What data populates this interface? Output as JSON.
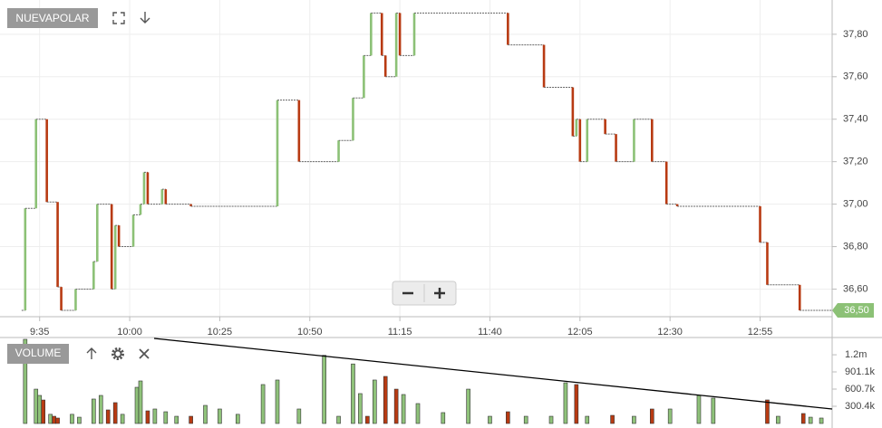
{
  "chart_data": [
    {
      "type": "step",
      "title": "NUEVAPOLAR",
      "x": [
        "9:30",
        "9:31",
        "9:34",
        "9:37",
        "9:40",
        "9:41",
        "9:45",
        "9:50",
        "9:51",
        "9:55",
        "9:56",
        "9:57",
        "10:01",
        "10:03",
        "10:04",
        "10:05",
        "10:09",
        "10:10",
        "10:17",
        "10:41",
        "10:47",
        "10:58",
        "11:02",
        "11:05",
        "11:07",
        "11:10",
        "11:11",
        "11:14",
        "11:15",
        "11:19",
        "11:45",
        "11:55",
        "12:03",
        "12:04",
        "12:05",
        "12:07",
        "12:12",
        "12:15",
        "12:20",
        "12:25",
        "12:29",
        "12:32",
        "12:55",
        "12:57",
        "13:06"
      ],
      "values": [
        36.5,
        36.98,
        37.4,
        37.01,
        36.61,
        36.5,
        36.6,
        36.73,
        37.0,
        36.6,
        36.9,
        36.8,
        36.95,
        37.0,
        37.15,
        37.0,
        37.07,
        37.0,
        36.99,
        37.49,
        37.2,
        37.3,
        37.5,
        37.7,
        37.9,
        37.7,
        37.6,
        37.9,
        37.7,
        37.9,
        37.75,
        37.55,
        37.32,
        37.4,
        37.2,
        37.4,
        37.33,
        37.2,
        37.4,
        37.2,
        37.0,
        36.99,
        36.82,
        36.62,
        36.5
      ],
      "up_color": "#8cc176",
      "down_color": "#b83a12",
      "xlim": [
        "9:24",
        "13:15"
      ],
      "xticks": [
        "9:35",
        "10:00",
        "10:25",
        "10:50",
        "11:15",
        "11:40",
        "12:05",
        "12:30",
        "12:55"
      ],
      "ylim": [
        36.47,
        37.94
      ],
      "yticks": [
        {
          "value": 36.6,
          "label": "36,60"
        },
        {
          "value": 36.8,
          "label": "36,80"
        },
        {
          "value": 37.0,
          "label": "37,00"
        },
        {
          "value": 37.2,
          "label": "37,20"
        },
        {
          "value": 37.4,
          "label": "37,40"
        },
        {
          "value": 37.6,
          "label": "37,60"
        },
        {
          "value": 37.8,
          "label": "37,80"
        }
      ],
      "last_price": {
        "value": 36.5,
        "label": "36,50"
      },
      "grid": true
    },
    {
      "type": "bar",
      "title": "VOLUME",
      "x": [
        "9:31",
        "9:34",
        "9:35",
        "9:36",
        "9:38",
        "9:39",
        "9:40",
        "9:44",
        "9:46",
        "9:50",
        "9:52",
        "9:54",
        "9:56",
        "9:58",
        "10:02",
        "10:03",
        "10:05",
        "10:07",
        "10:10",
        "10:13",
        "10:17",
        "10:21",
        "10:25",
        "10:30",
        "10:37",
        "10:41",
        "10:47",
        "10:54",
        "10:58",
        "11:02",
        "11:04",
        "11:06",
        "11:08",
        "11:11",
        "11:14",
        "11:16",
        "11:20",
        "11:27",
        "11:34",
        "11:40",
        "11:45",
        "11:50",
        "11:57",
        "12:01",
        "12:04",
        "12:07",
        "12:14",
        "12:20",
        "12:25",
        "12:30",
        "12:38",
        "12:42",
        "12:57",
        "13:00",
        "13:07",
        "13:09",
        "13:12"
      ],
      "values": [
        1470000,
        600000,
        490000,
        410000,
        160000,
        126000,
        95000,
        160000,
        110000,
        427000,
        490000,
        237000,
        364000,
        160000,
        632000,
        743000,
        221000,
        253000,
        205000,
        126000,
        126000,
        316000,
        253000,
        160000,
        680000,
        759000,
        253000,
        1190000,
        126000,
        1040000,
        522000,
        126000,
        759000,
        822000,
        600000,
        506000,
        348000,
        190000,
        600000,
        126000,
        205000,
        126000,
        126000,
        711000,
        680000,
        126000,
        142000,
        126000,
        253000,
        253000,
        490000,
        443000,
        411000,
        126000,
        174000,
        110000,
        95000
      ],
      "colors": [
        "#8fc27a",
        "#8fc27a",
        "#8fc27a",
        "#b83a12",
        "#8fc27a",
        "#b83a12",
        "#b83a12",
        "#8fc27a",
        "#8fc27a",
        "#8fc27a",
        "#8fc27a",
        "#b83a12",
        "#b83a12",
        "#8fc27a",
        "#8fc27a",
        "#8fc27a",
        "#b83a12",
        "#8fc27a",
        "#8fc27a",
        "#8fc27a",
        "#b83a12",
        "#8fc27a",
        "#8fc27a",
        "#8fc27a",
        "#8fc27a",
        "#8fc27a",
        "#8fc27a",
        "#8fc27a",
        "#8fc27a",
        "#8fc27a",
        "#8fc27a",
        "#b83a12",
        "#8fc27a",
        "#b83a12",
        "#b83a12",
        "#8fc27a",
        "#8fc27a",
        "#8fc27a",
        "#8fc27a",
        "#8fc27a",
        "#b83a12",
        "#8fc27a",
        "#8fc27a",
        "#8fc27a",
        "#b83a12",
        "#8fc27a",
        "#b83a12",
        "#8fc27a",
        "#b83a12",
        "#8fc27a",
        "#8fc27a",
        "#8fc27a",
        "#b83a12",
        "#8fc27a",
        "#b83a12",
        "#8fc27a",
        "#8fc27a"
      ],
      "xlim": [
        "9:24",
        "13:15"
      ],
      "ylim": [
        0,
        1470000
      ],
      "yticks": [
        {
          "value": 300400,
          "label": "300.4k"
        },
        {
          "value": 600700,
          "label": "600.7k"
        },
        {
          "value": 901100,
          "label": "901.1k"
        },
        {
          "value": 1200000,
          "label": "1.2m"
        }
      ]
    }
  ]
}
